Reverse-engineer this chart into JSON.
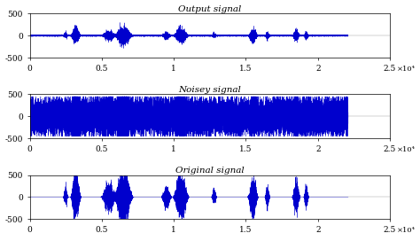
{
  "titles": [
    "Output signal",
    "Noisey signal",
    "Original signal"
  ],
  "xlim": [
    0,
    25000
  ],
  "ylim": [
    -500,
    500
  ],
  "yticks": [
    -500,
    0,
    500
  ],
  "xticks": [
    0,
    5000,
    10000,
    15000,
    20000,
    25000
  ],
  "xticklabels": [
    "0",
    "0.5",
    "1",
    "1.5",
    "2",
    "2.5"
  ],
  "xlabel_exponent": "×10⁴",
  "line_color": "#0000cd",
  "figsize": [
    4.74,
    2.72
  ],
  "dpi": 100,
  "n_samples": 22100,
  "noise_amplitude": 200,
  "signal_amplitude": 300,
  "seed": 42,
  "burst_centers": [
    2500,
    3200,
    5500,
    6500,
    9500,
    10500,
    12800,
    15500,
    16500,
    18500,
    19200
  ],
  "burst_widths": [
    400,
    800,
    1200,
    1500,
    800,
    1200,
    400,
    800,
    400,
    600,
    400
  ],
  "burst_amplitudes": [
    0.3,
    0.9,
    0.5,
    0.95,
    0.4,
    0.85,
    0.3,
    0.7,
    0.35,
    0.6,
    0.35
  ]
}
